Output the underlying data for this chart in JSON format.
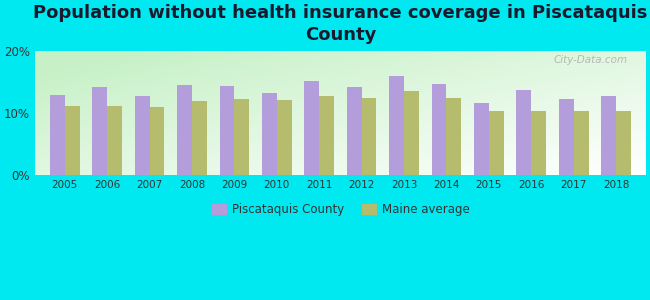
{
  "title": "Population without health insurance coverage in Piscataquis\nCounty",
  "years": [
    2005,
    2006,
    2007,
    2008,
    2009,
    2010,
    2011,
    2012,
    2013,
    2014,
    2015,
    2016,
    2017,
    2018
  ],
  "piscataquis": [
    13.0,
    14.2,
    12.8,
    14.5,
    14.4,
    13.2,
    15.2,
    14.3,
    16.0,
    14.8,
    11.7,
    13.7,
    12.3,
    12.7
  ],
  "maine_avg": [
    11.2,
    11.2,
    11.0,
    12.0,
    12.3,
    12.2,
    12.8,
    12.4,
    13.6,
    12.4,
    10.4,
    10.4,
    10.3,
    10.3
  ],
  "piscataquis_color": "#b39ddb",
  "maine_color": "#b5bc6e",
  "background_color": "#00e8f0",
  "ylim": [
    0,
    20
  ],
  "yticks": [
    0,
    10,
    20
  ],
  "ytick_labels": [
    "0%",
    "10%",
    "20%"
  ],
  "legend_piscataquis": "Piscataquis County",
  "legend_maine": "Maine average",
  "watermark": "City-Data.com",
  "title_fontsize": 13,
  "bar_width": 0.35
}
